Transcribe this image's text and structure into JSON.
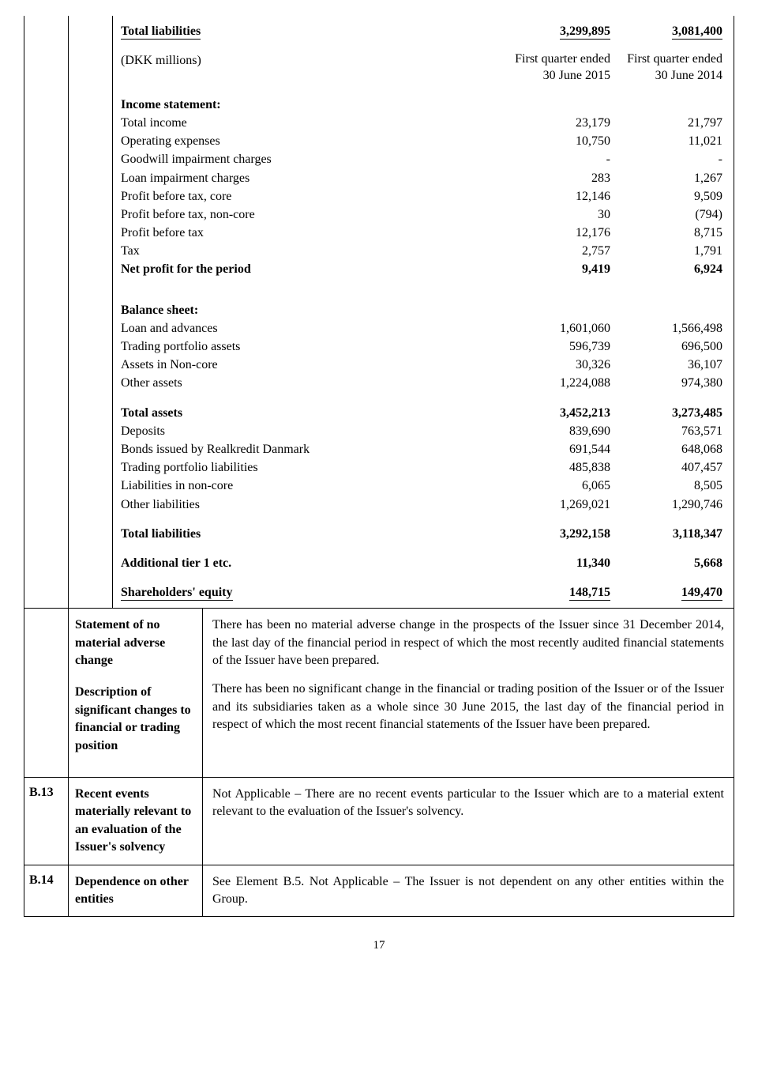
{
  "page_number": "17",
  "financials": {
    "total_liabilities_top": {
      "label": "Total liabilities",
      "v1": "3,299,895",
      "v2": "3,081,400"
    },
    "unit_line": {
      "label": "(DKK millions)",
      "v1_line1": "First quarter ended",
      "v1_line2": "30 June 2015",
      "v2_line1": "First quarter ended",
      "v2_line2": "30 June 2014"
    },
    "income_header": "Income statement:",
    "income_rows": [
      {
        "label": "Total income",
        "v1": "23,179",
        "v2": "21,797"
      },
      {
        "label": "Operating expenses",
        "v1": "10,750",
        "v2": "11,021"
      },
      {
        "label": "Goodwill impairment charges",
        "v1": "-",
        "v2": "-"
      },
      {
        "label": "Loan impairment charges",
        "v1": "283",
        "v2": "1,267"
      },
      {
        "label": "Profit before tax, core",
        "v1": "12,146",
        "v2": "9,509"
      },
      {
        "label": "Profit before tax, non-core",
        "v1": "30",
        "v2": "(794)"
      },
      {
        "label": "Profit before tax",
        "v1": "12,176",
        "v2": "8,715"
      },
      {
        "label": "Tax",
        "v1": "2,757",
        "v2": "1,791"
      }
    ],
    "net_profit": {
      "label": "Net profit for the period",
      "v1": "9,419",
      "v2": "6,924"
    },
    "balance_header": "Balance sheet:",
    "balance_rows": [
      {
        "label": "Loan and advances",
        "v1": "1,601,060",
        "v2": "1,566,498"
      },
      {
        "label": "Trading portfolio assets",
        "v1": "596,739",
        "v2": "696,500"
      },
      {
        "label": "Assets in Non-core",
        "v1": "30,326",
        "v2": "36,107"
      },
      {
        "label": "Other assets",
        "v1": "1,224,088",
        "v2": "974,380"
      }
    ],
    "total_assets": {
      "label": "Total assets",
      "v1": "3,452,213",
      "v2": "3,273,485"
    },
    "liab_rows": [
      {
        "label": "Deposits",
        "v1": "839,690",
        "v2": "763,571"
      },
      {
        "label": "Bonds issued by Realkredit Danmark",
        "v1": "691,544",
        "v2": "648,068"
      },
      {
        "label": "Trading portfolio liabilities",
        "v1": "485,838",
        "v2": "407,457"
      },
      {
        "label": "Liabilities in non-core",
        "v1": "6,065",
        "v2": "8,505"
      },
      {
        "label": "Other liabilities",
        "v1": "1,269,021",
        "v2": "1,290,746"
      }
    ],
    "total_liab_bottom": {
      "label": "Total liabilities",
      "v1": "3,292,158",
      "v2": "3,118,347"
    },
    "tier1": {
      "label": "Additional tier 1 etc.",
      "v1": "11,340",
      "v2": "5,668"
    },
    "equity": {
      "label": "Shareholders' equity",
      "v1": "148,715",
      "v2": "149,470"
    }
  },
  "statements": {
    "group1_title": "Statement of no material adverse change",
    "group2_title": "Description of significant changes to financial or trading position",
    "para1": "There has been no material adverse change in the prospects of the Issuer since 31 December 2014, the last day of the financial period in respect of which the most recently audited financial statements of the Issuer have been prepared.",
    "para2": "There has been no significant change in the financial or trading position of the Issuer or of the Issuer and its subsidiaries taken as a whole since 30 June 2015, the last day of the financial period in respect of which the most recent financial statements of the Issuer have been prepared."
  },
  "b13": {
    "id": "B.13",
    "title": "Recent events materially relevant to an evaluation of the Issuer's solvency",
    "text": "Not Applicable – There are no recent events particular to the Issuer which are to a material extent relevant to the evaluation of the Issuer's solvency."
  },
  "b14": {
    "id": "B.14",
    "title": "Dependence on other entities",
    "text": "See Element B.5. Not Applicable – The Issuer is not dependent on any other entities within the Group."
  }
}
